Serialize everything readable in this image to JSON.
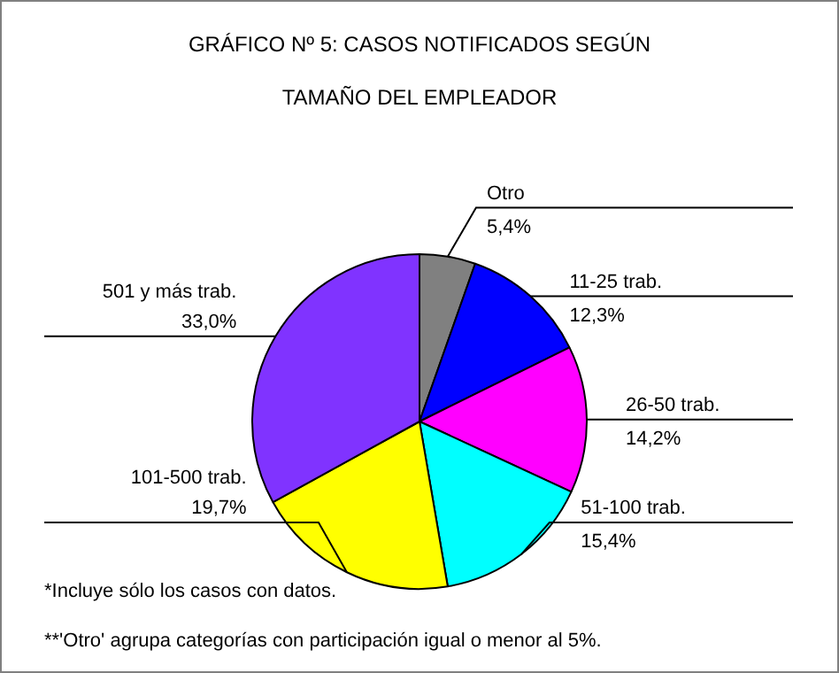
{
  "chart_data": {
    "type": "pie",
    "title": "GRÁFICO Nº 5: CASOS NOTIFICADOS SEGÚN TAMAÑO DEL EMPLEADOR",
    "categories": [
      "Otro",
      "11-25 trab.",
      "26-50 trab.",
      "51-100 trab.",
      "101-500 trab.",
      "501 y más trab."
    ],
    "values": [
      5.4,
      12.3,
      14.2,
      15.4,
      19.7,
      33.0
    ],
    "value_labels": [
      "5,4%",
      "12,3%",
      "14,2%",
      "15,4%",
      "19,7%",
      "33,0%"
    ],
    "colors": [
      "#808080",
      "#0000ff",
      "#ff00ff",
      "#00ffff",
      "#ffff00",
      "#8033ff"
    ],
    "legend": false,
    "annotations": [
      "*Incluye sólo los casos con datos.",
      "**'Otro' agrupa categorías con participación igual o menor al 5%."
    ]
  }
}
